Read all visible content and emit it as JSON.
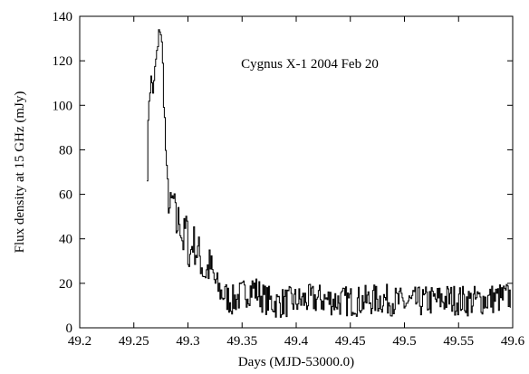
{
  "chart_data": {
    "type": "line",
    "annotation": "Cygnus X-1 2004 Feb 20",
    "xlabel": "Days (MJD-53000.0)",
    "ylabel": "Flux density at 15 GHz (mJy)",
    "xlim": [
      49.2,
      49.6
    ],
    "ylim": [
      0,
      140
    ],
    "x_ticks": [
      49.2,
      49.25,
      49.3,
      49.35,
      49.4,
      49.45,
      49.5,
      49.55,
      49.6
    ],
    "x_tick_labels": [
      "49.2",
      "49.25",
      "49.3",
      "49.35",
      "49.4",
      "49.45",
      "49.5",
      "49.55",
      "49.6"
    ],
    "y_ticks": [
      0,
      20,
      40,
      60,
      80,
      100,
      120,
      140
    ],
    "y_tick_labels": [
      "0",
      "20",
      "40",
      "60",
      "80",
      "100",
      "120",
      "140"
    ],
    "grid": false,
    "line_style": "step",
    "line_color": "#000000",
    "series": [
      {
        "x": [
          49.262,
          49.264,
          49.266,
          49.268,
          49.27,
          49.272,
          49.274,
          49.276,
          49.278,
          49.28,
          49.283,
          49.286,
          49.289,
          49.292,
          49.295,
          49.298,
          49.301,
          49.304,
          49.307,
          49.31,
          49.315,
          49.32,
          49.325,
          49.33,
          49.335,
          49.34,
          49.35,
          49.36,
          49.37,
          49.38,
          49.4,
          49.42,
          49.44,
          49.46,
          49.48,
          49.5,
          49.52,
          49.54,
          49.56,
          49.58,
          49.598
        ],
        "values": [
          72,
          108,
          111,
          106,
          120,
          125,
          138,
          122,
          95,
          68,
          52,
          58,
          45,
          50,
          38,
          46,
          30,
          40,
          35,
          33,
          24,
          28,
          20,
          16,
          14,
          12,
          15,
          18,
          13,
          11,
          12,
          13,
          12,
          12,
          13,
          11,
          12,
          13,
          12,
          13,
          14
        ]
      }
    ]
  }
}
